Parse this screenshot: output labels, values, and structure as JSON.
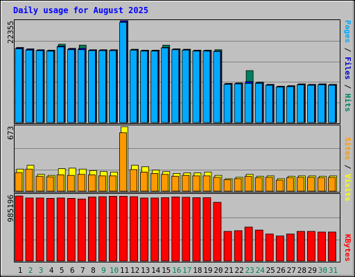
{
  "chart_data": [
    {
      "type": "bar",
      "title": "Daily usage for August 2025",
      "ylabel_max": "22355",
      "legend": [
        {
          "label": "Pages",
          "color": "#00aaff"
        },
        {
          "label": "Files",
          "color": "#0000cc"
        },
        {
          "label": "Hits",
          "color": "#008060"
        }
      ],
      "separator": "/",
      "categories": [
        "1",
        "2",
        "3",
        "4",
        "5",
        "6",
        "7",
        "8",
        "9",
        "10",
        "11",
        "12",
        "13",
        "14",
        "15",
        "16",
        "17",
        "18",
        "19",
        "20",
        "21",
        "22",
        "23",
        "24",
        "25",
        "26",
        "27",
        "28",
        "29",
        "30",
        "31"
      ],
      "weekend_days": [
        "2",
        "3",
        "9",
        "10",
        "16",
        "17",
        "23",
        "24",
        "30",
        "31"
      ],
      "ylim": [
        0,
        22355
      ],
      "series": [
        {
          "name": "Hits",
          "values": [
            16500,
            16200,
            16000,
            15900,
            17200,
            16300,
            17000,
            16000,
            16000,
            16000,
            22355,
            16100,
            15900,
            15900,
            17000,
            16200,
            16100,
            15900,
            15900,
            16000,
            8600,
            8700,
            11400,
            8900,
            8400,
            8000,
            8100,
            8500,
            8400,
            8500,
            8400
          ]
        },
        {
          "name": "Files",
          "values": [
            16400,
            16100,
            15900,
            15800,
            16800,
            16200,
            16300,
            15900,
            15900,
            15900,
            22355,
            16000,
            15800,
            15800,
            16500,
            16100,
            16000,
            15800,
            15800,
            15700,
            8500,
            8600,
            9000,
            8700,
            8300,
            7900,
            8000,
            8400,
            8300,
            8400,
            8300
          ]
        },
        {
          "name": "Pages",
          "values": [
            16200,
            15900,
            15800,
            15700,
            16600,
            16000,
            16000,
            15800,
            15800,
            15800,
            22000,
            15900,
            15700,
            15700,
            16400,
            16000,
            15900,
            15700,
            15700,
            15600,
            8400,
            8500,
            8600,
            8600,
            8200,
            7800,
            7900,
            8300,
            8200,
            8300,
            8200
          ]
        }
      ]
    },
    {
      "type": "bar",
      "ylabel_max": "673",
      "legend": [
        {
          "label": "Sites",
          "color": "#ff9900"
        },
        {
          "label": "Visits",
          "color": "#ffff00"
        }
      ],
      "separator": "/",
      "ylim": [
        0,
        673
      ],
      "series": [
        {
          "name": "Visits",
          "values": [
            230,
            270,
            175,
            165,
            235,
            240,
            230,
            215,
            205,
            200,
            673,
            270,
            255,
            220,
            205,
            185,
            190,
            190,
            200,
            165,
            130,
            145,
            175,
            155,
            160,
            130,
            155,
            160,
            160,
            155,
            160
          ]
        },
        {
          "name": "Sites",
          "values": [
            195,
            230,
            155,
            150,
            170,
            165,
            175,
            170,
            160,
            160,
            610,
            225,
            200,
            185,
            175,
            155,
            165,
            160,
            160,
            145,
            120,
            130,
            155,
            140,
            145,
            115,
            140,
            145,
            145,
            140,
            145
          ]
        }
      ]
    },
    {
      "type": "bar",
      "ylabel_max": "985196",
      "legend": [
        {
          "label": "KBytes",
          "color": "#ff0000"
        }
      ],
      "ylim": [
        0,
        985196
      ],
      "series": [
        {
          "name": "KBytes",
          "values": [
            985196,
            955000,
            955000,
            950000,
            955000,
            950000,
            940000,
            970000,
            975000,
            980000,
            980000,
            975000,
            955000,
            955000,
            960000,
            970000,
            965000,
            960000,
            960000,
            890000,
            450000,
            460000,
            515000,
            470000,
            410000,
            380000,
            410000,
            450000,
            450000,
            440000,
            440000
          ]
        }
      ]
    }
  ]
}
